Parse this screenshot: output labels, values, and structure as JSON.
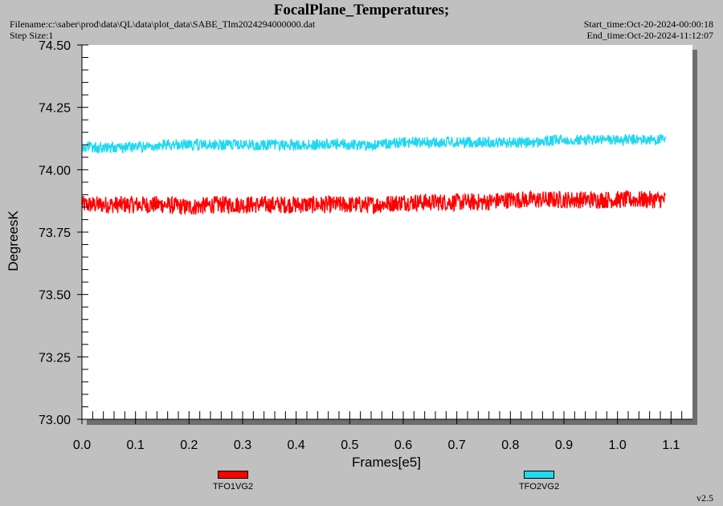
{
  "header": {
    "title": "FocalPlane_Temperatures;",
    "filename": "Filename:c:\\saber\\prod\\data\\QL\\data\\plot_data\\SABE_Tlm2024294000000.dat",
    "step_size": "Step Size:1",
    "start_time": "Start_time:Oct-20-2024-00:00:18",
    "end_time": "End_time:Oct-20-2024-11:12:07",
    "version": "v2.5"
  },
  "chart_data": {
    "type": "line",
    "title": "FocalPlane_Temperatures;",
    "xlabel": "Frames[e5]",
    "ylabel": "DegreesK",
    "xlim": [
      0,
      1.14
    ],
    "ylim": [
      73.0,
      74.5
    ],
    "x_ticks": [
      "0.0",
      "0.1",
      "0.2",
      "0.3",
      "0.4",
      "0.5",
      "0.6",
      "0.7",
      "0.8",
      "0.9",
      "1.0",
      "1.1"
    ],
    "y_ticks": [
      "73.00",
      "73.25",
      "73.50",
      "73.75",
      "74.00",
      "74.25",
      "74.50"
    ],
    "grid": false,
    "legend_position": "bottom",
    "series": [
      {
        "name": "TFO1VG2",
        "color": "#ff0000",
        "x": [
          0.0,
          0.05,
          0.1,
          0.15,
          0.2,
          0.25,
          0.3,
          0.35,
          0.4,
          0.45,
          0.5,
          0.55,
          0.6,
          0.65,
          0.7,
          0.75,
          0.8,
          0.85,
          0.9,
          0.95,
          1.0,
          1.05,
          1.09
        ],
        "values": [
          73.86,
          73.86,
          73.86,
          73.86,
          73.85,
          73.86,
          73.86,
          73.86,
          73.86,
          73.86,
          73.86,
          73.86,
          73.87,
          73.87,
          73.87,
          73.87,
          73.88,
          73.88,
          73.88,
          73.88,
          73.88,
          73.88,
          73.88
        ],
        "noise": 0.035
      },
      {
        "name": "TFO2VG2",
        "color": "#22d8f0",
        "x": [
          0.0,
          0.05,
          0.1,
          0.15,
          0.2,
          0.25,
          0.3,
          0.35,
          0.4,
          0.45,
          0.5,
          0.55,
          0.6,
          0.65,
          0.7,
          0.75,
          0.8,
          0.85,
          0.9,
          0.95,
          1.0,
          1.05,
          1.09
        ],
        "values": [
          74.09,
          74.09,
          74.09,
          74.1,
          74.1,
          74.1,
          74.1,
          74.1,
          74.1,
          74.1,
          74.1,
          74.1,
          74.11,
          74.11,
          74.11,
          74.11,
          74.11,
          74.11,
          74.12,
          74.12,
          74.12,
          74.12,
          74.12
        ],
        "noise": 0.022
      }
    ]
  }
}
